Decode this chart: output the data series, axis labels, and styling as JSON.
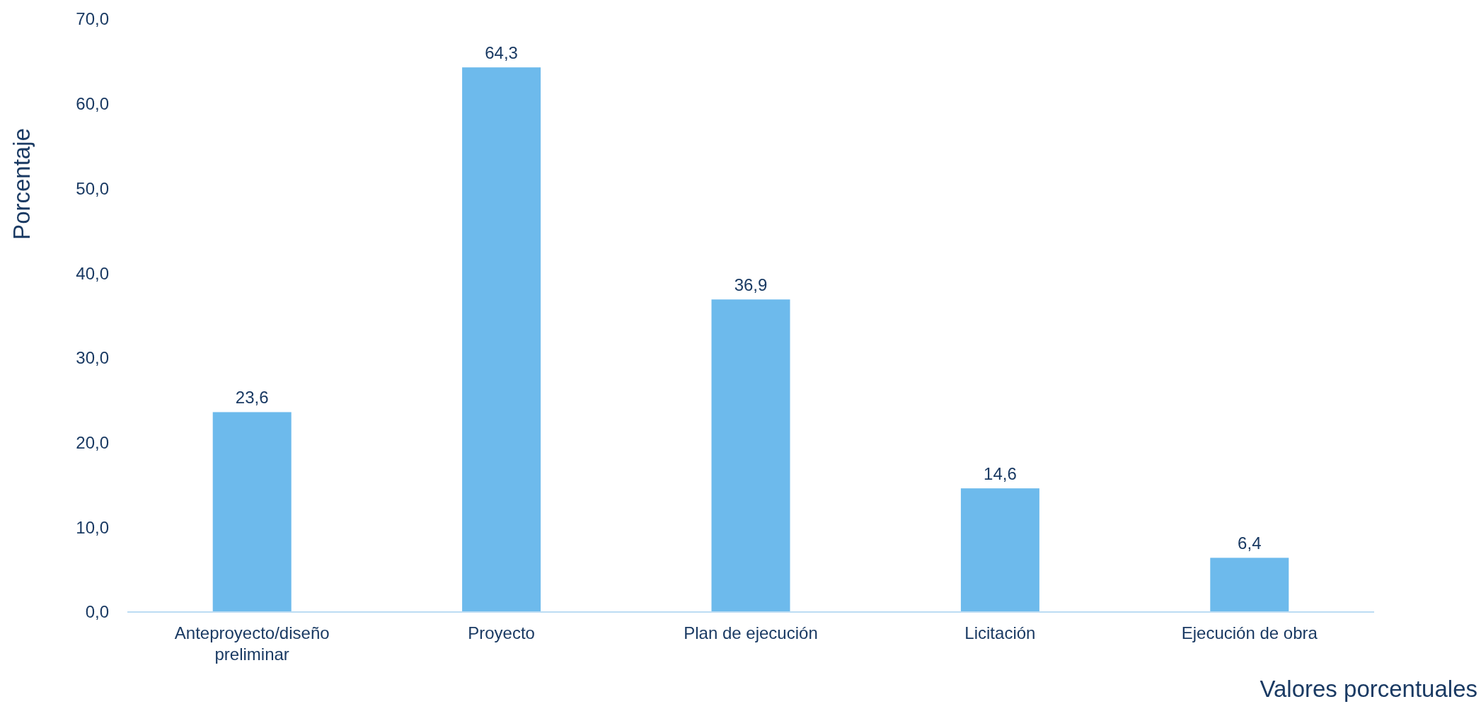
{
  "chart_data": {
    "type": "bar",
    "xlabel": "Valores porcentuales",
    "ylabel": "Porcentaje",
    "categories": [
      "Anteproyecto/diseño preliminar",
      "Proyecto",
      "Plan de ejecución",
      "Licitación",
      "Ejecución de obra"
    ],
    "values": [
      23.6,
      64.3,
      36.9,
      14.6,
      6.4
    ],
    "value_labels": [
      "23,6",
      "64,3",
      "36,9",
      "14,6",
      "6,4"
    ],
    "color": "#6dbaec",
    "ylim": [
      0,
      70
    ],
    "yticks": [
      {
        "value": 0,
        "label": "0,0"
      },
      {
        "value": 10,
        "label": "10,0"
      },
      {
        "value": 20,
        "label": "20,0"
      },
      {
        "value": 30,
        "label": "30,0"
      },
      {
        "value": 40,
        "label": "40,0"
      },
      {
        "value": 50,
        "label": "50,0"
      },
      {
        "value": 60,
        "label": "60,0"
      },
      {
        "value": 70,
        "label": "70,0"
      }
    ],
    "grid": false
  }
}
